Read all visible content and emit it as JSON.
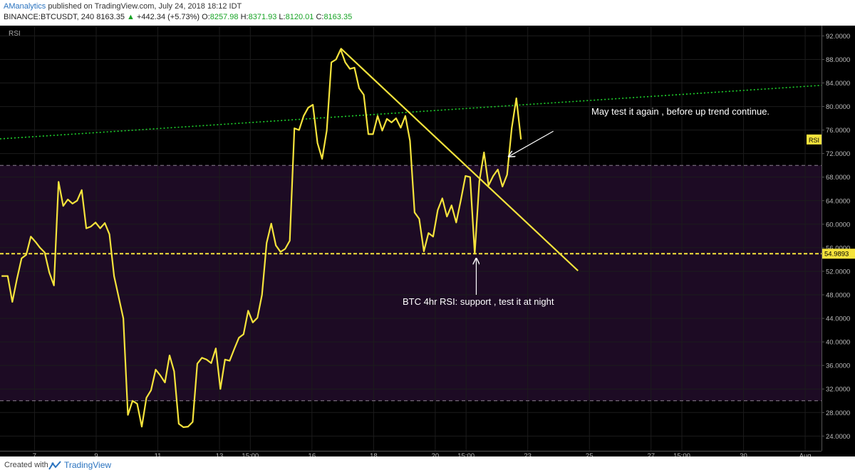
{
  "header": {
    "author": "AManalytics",
    "published": "published on TradingView.com, July 24, 2018 18:12 IDT",
    "symbol": "BINANCE:BTCUSDT, 240",
    "last": "8163.35",
    "change_arrow": "▲",
    "change": "+442.34 (+5.73%)",
    "o_label": "O:",
    "o_value": "8257.98",
    "h_label": "H:",
    "h_value": "8371.93",
    "l_label": "L:",
    "l_value": "8120.01",
    "c_label": "C:",
    "c_value": "8163.35"
  },
  "footer": {
    "created": "Created with",
    "brand": "TradingView"
  },
  "chart_data": {
    "type": "line",
    "indicator_label": "RSI",
    "ylim": [
      21.5,
      93.5
    ],
    "y_ticks": [
      "92.0000",
      "88.0000",
      "84.0000",
      "80.0000",
      "76.0000",
      "72.0000",
      "68.0000",
      "64.0000",
      "60.0000",
      "56.0000",
      "52.0000",
      "48.0000",
      "44.0000",
      "40.0000",
      "36.0000",
      "32.0000",
      "28.0000",
      "24.0000"
    ],
    "y_tick_values": [
      92,
      88,
      84,
      80,
      76,
      72,
      68,
      64,
      60,
      56,
      52,
      48,
      44,
      40,
      36,
      32,
      28,
      24
    ],
    "x_ticks": [
      {
        "label": "7",
        "x": 6.57
      },
      {
        "label": "9",
        "x": 8.57
      },
      {
        "label": "11",
        "x": 10.57
      },
      {
        "label": "13",
        "x": 12.57
      },
      {
        "label": "15:00",
        "x": 13.57
      },
      {
        "label": "16",
        "x": 15.57
      },
      {
        "label": "18",
        "x": 17.57
      },
      {
        "label": "20",
        "x": 19.57
      },
      {
        "label": "15:00",
        "x": 20.57
      },
      {
        "label": "23",
        "x": 22.57
      },
      {
        "label": "25",
        "x": 24.57
      },
      {
        "label": "27",
        "x": 26.57
      },
      {
        "label": "15:00",
        "x": 27.57
      },
      {
        "label": "30",
        "x": 29.57
      },
      {
        "label": "Aug",
        "x": 31.57
      }
    ],
    "xlim": [
      5.45,
      32.1
    ],
    "series": [
      {
        "color": "#f5e33c",
        "values": [
          [
            5.5,
            51.2
          ],
          [
            5.7,
            51.2
          ],
          [
            5.85,
            46.8
          ],
          [
            6.0,
            50.7
          ],
          [
            6.15,
            54.2
          ],
          [
            6.3,
            54.8
          ],
          [
            6.45,
            57.9
          ],
          [
            6.6,
            57.0
          ],
          [
            6.75,
            56.0
          ],
          [
            6.9,
            55.2
          ],
          [
            7.05,
            51.8
          ],
          [
            7.2,
            49.6
          ],
          [
            7.35,
            67.2
          ],
          [
            7.5,
            63.1
          ],
          [
            7.65,
            64.2
          ],
          [
            7.8,
            63.5
          ],
          [
            7.95,
            64.0
          ],
          [
            8.1,
            65.8
          ],
          [
            8.25,
            59.3
          ],
          [
            8.4,
            59.6
          ],
          [
            8.55,
            60.3
          ],
          [
            8.7,
            59.3
          ],
          [
            8.85,
            60.2
          ],
          [
            9.0,
            58.3
          ],
          [
            9.15,
            51.2
          ],
          [
            9.3,
            47.6
          ],
          [
            9.45,
            44.0
          ],
          [
            9.6,
            27.6
          ],
          [
            9.75,
            30.0
          ],
          [
            9.9,
            29.5
          ],
          [
            10.05,
            25.6
          ],
          [
            10.2,
            30.5
          ],
          [
            10.35,
            31.8
          ],
          [
            10.5,
            35.3
          ],
          [
            10.65,
            34.3
          ],
          [
            10.8,
            33.1
          ],
          [
            10.95,
            37.7
          ],
          [
            11.1,
            35.0
          ],
          [
            11.25,
            26.1
          ],
          [
            11.4,
            25.5
          ],
          [
            11.55,
            25.6
          ],
          [
            11.7,
            26.4
          ],
          [
            11.85,
            36.3
          ],
          [
            12.0,
            37.3
          ],
          [
            12.15,
            37.0
          ],
          [
            12.3,
            36.4
          ],
          [
            12.45,
            38.9
          ],
          [
            12.6,
            32.0
          ],
          [
            12.75,
            37.0
          ],
          [
            12.9,
            36.8
          ],
          [
            13.05,
            38.8
          ],
          [
            13.2,
            40.7
          ],
          [
            13.35,
            41.3
          ],
          [
            13.5,
            45.3
          ],
          [
            13.65,
            43.3
          ],
          [
            13.8,
            44.1
          ],
          [
            13.95,
            48.0
          ],
          [
            14.1,
            56.8
          ],
          [
            14.25,
            60.1
          ],
          [
            14.4,
            56.4
          ],
          [
            14.55,
            55.3
          ],
          [
            14.7,
            55.8
          ],
          [
            14.85,
            57.2
          ],
          [
            15.0,
            76.3
          ],
          [
            15.15,
            76.0
          ],
          [
            15.3,
            78.4
          ],
          [
            15.45,
            79.8
          ],
          [
            15.6,
            80.3
          ],
          [
            15.75,
            73.8
          ],
          [
            15.9,
            71.1
          ],
          [
            16.05,
            75.9
          ],
          [
            16.2,
            87.5
          ],
          [
            16.35,
            88.0
          ],
          [
            16.5,
            89.7
          ],
          [
            16.65,
            87.5
          ],
          [
            16.8,
            86.4
          ],
          [
            16.95,
            86.6
          ],
          [
            17.1,
            83.1
          ],
          [
            17.25,
            82.0
          ],
          [
            17.4,
            75.3
          ],
          [
            17.55,
            75.3
          ],
          [
            17.7,
            78.4
          ],
          [
            17.85,
            75.9
          ],
          [
            18.0,
            77.9
          ],
          [
            18.15,
            77.3
          ],
          [
            18.3,
            78.0
          ],
          [
            18.45,
            76.4
          ],
          [
            18.6,
            78.4
          ],
          [
            18.75,
            74.2
          ],
          [
            18.9,
            62.0
          ],
          [
            19.05,
            60.9
          ],
          [
            19.2,
            55.4
          ],
          [
            19.35,
            58.5
          ],
          [
            19.5,
            57.9
          ],
          [
            19.65,
            62.4
          ],
          [
            19.8,
            64.4
          ],
          [
            19.95,
            61.3
          ],
          [
            20.1,
            63.2
          ],
          [
            20.25,
            60.3
          ],
          [
            20.4,
            64.1
          ],
          [
            20.55,
            68.2
          ],
          [
            20.7,
            68.0
          ],
          [
            20.85,
            55.0
          ],
          [
            21.0,
            67.3
          ],
          [
            21.15,
            72.2
          ],
          [
            21.3,
            66.6
          ],
          [
            21.45,
            68.2
          ],
          [
            21.6,
            69.3
          ],
          [
            21.75,
            66.4
          ],
          [
            21.9,
            68.4
          ],
          [
            22.05,
            76.3
          ],
          [
            22.2,
            81.4
          ],
          [
            22.35,
            74.4
          ]
        ]
      }
    ],
    "overbought": 70,
    "oversold": 30,
    "support_level": 54.9893,
    "support_label": "54.9893",
    "rsi_badge": "RSI",
    "rsi_last": 74.4,
    "downtrend_line": [
      [
        16.5,
        89.9
      ],
      [
        24.2,
        52.1
      ]
    ],
    "green_trend_line": [
      [
        5.45,
        74.5
      ],
      [
        32.1,
        83.6
      ]
    ],
    "annotations": [
      {
        "text": "May test it again , before up trend continue.",
        "arrow_from": [
          23.4,
          75.8
        ],
        "arrow_to": [
          21.95,
          71.5
        ]
      },
      {
        "text": "BTC 4hr RSI: support , test it at night",
        "arrow_from": [
          20.9,
          48.0
        ],
        "arrow_to": [
          20.9,
          54.2
        ]
      }
    ]
  }
}
